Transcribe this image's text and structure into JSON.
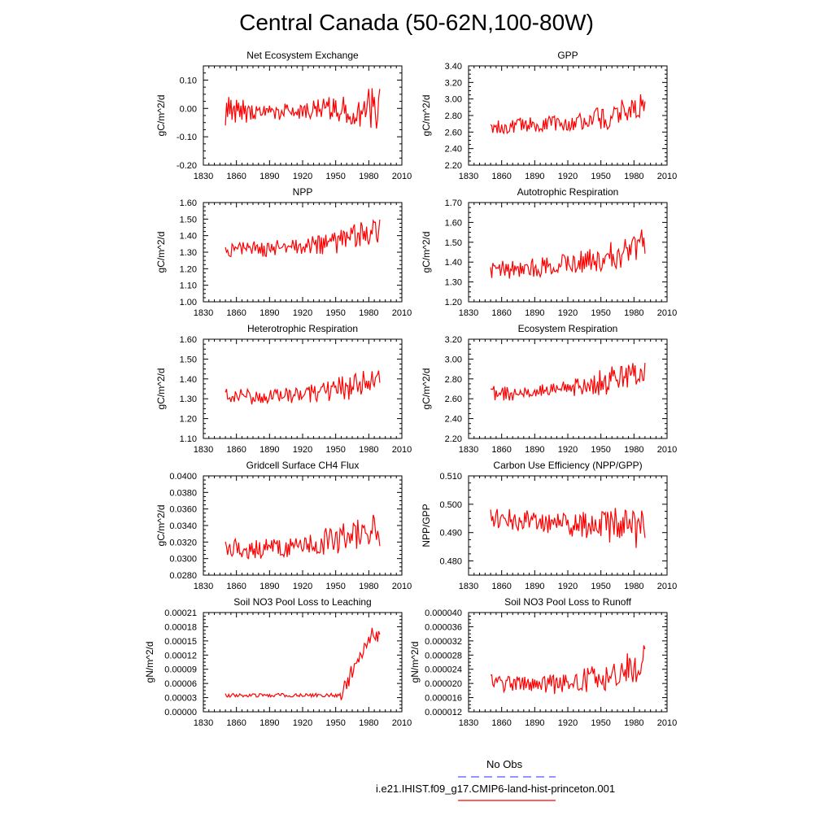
{
  "figure": {
    "title": "Central Canada (50-62N,100-80W)"
  },
  "colors": {
    "model_line": "#ff0000",
    "obs_line": "#5555ff",
    "axis": "#000000"
  },
  "chart_data": [
    {
      "type": "line",
      "title": "Net Ecosystem Exchange",
      "ylabel": "gC/m^2/d",
      "xlim": [
        1830,
        2010
      ],
      "xticks": [
        "1830",
        "1860",
        "1890",
        "1920",
        "1950",
        "1980",
        "2010"
      ],
      "ylim": [
        -0.2,
        0.15
      ],
      "yticks": [
        "-0.20",
        "-0.10",
        "0.00",
        "0.10"
      ],
      "series": [
        {
          "name": "i.e21.IHIST.f09_g17.CMIP6-land-hist-princeton.001",
          "start_year": 1850,
          "end_year": 1990,
          "base": [
            -0.01,
            -0.01,
            -0.01,
            0.0,
            0.0
          ],
          "amplitude": [
            0.03,
            0.03,
            0.03,
            0.05,
            0.08
          ],
          "values": [
            -0.06,
            0.02,
            -0.03,
            0.04,
            -0.02,
            0.03,
            -0.04,
            0.0,
            0.01,
            -0.05,
            0.03,
            -0.01,
            0.02,
            -0.03,
            0.01,
            -0.04,
            0.03,
            -0.02,
            0.01,
            -0.05
          ]
        }
      ]
    },
    {
      "type": "line",
      "title": "GPP",
      "ylabel": "gC/m^2/d",
      "xlim": [
        1830,
        2010
      ],
      "xticks": [
        "1830",
        "1860",
        "1890",
        "1920",
        "1950",
        "1980",
        "2010"
      ],
      "ylim": [
        2.2,
        3.4
      ],
      "yticks": [
        "2.20",
        "2.40",
        "2.60",
        "2.80",
        "3.00",
        "3.20",
        "3.40"
      ],
      "series": [
        {
          "name": "i.e21.IHIST.f09_g17.CMIP6-land-hist-princeton.001",
          "start_year": 1850,
          "end_year": 1990,
          "base": [
            2.66,
            2.69,
            2.72,
            2.78,
            2.95
          ],
          "amplitude": [
            0.09,
            0.09,
            0.1,
            0.15,
            0.16
          ]
        }
      ]
    },
    {
      "type": "line",
      "title": "NPP",
      "ylabel": "gC/m^2/d",
      "xlim": [
        1830,
        2010
      ],
      "xticks": [
        "1830",
        "1860",
        "1890",
        "1920",
        "1950",
        "1980",
        "2010"
      ],
      "ylim": [
        1.0,
        1.6
      ],
      "yticks": [
        "1.00",
        "1.10",
        "1.20",
        "1.30",
        "1.40",
        "1.50",
        "1.60"
      ],
      "series": [
        {
          "name": "i.e21.IHIST.f09_g17.CMIP6-land-hist-princeton.001",
          "start_year": 1850,
          "end_year": 1990,
          "base": [
            1.31,
            1.32,
            1.33,
            1.37,
            1.44
          ],
          "amplitude": [
            0.05,
            0.05,
            0.05,
            0.08,
            0.08
          ]
        }
      ]
    },
    {
      "type": "line",
      "title": "Autotrophic Respiration",
      "ylabel": "gC/m^2/d",
      "xlim": [
        1830,
        2010
      ],
      "xticks": [
        "1830",
        "1860",
        "1890",
        "1920",
        "1950",
        "1980",
        "2010"
      ],
      "ylim": [
        1.2,
        1.7
      ],
      "yticks": [
        "1.20",
        "1.30",
        "1.40",
        "1.50",
        "1.60",
        "1.70"
      ],
      "series": [
        {
          "name": "i.e21.IHIST.f09_g17.CMIP6-land-hist-princeton.001",
          "start_year": 1850,
          "end_year": 1990,
          "base": [
            1.35,
            1.37,
            1.39,
            1.42,
            1.5
          ],
          "amplitude": [
            0.05,
            0.05,
            0.05,
            0.08,
            0.08
          ]
        }
      ]
    },
    {
      "type": "line",
      "title": "Heterotrophic Respiration",
      "ylabel": "gC/m^2/d",
      "xlim": [
        1830,
        2010
      ],
      "xticks": [
        "1830",
        "1860",
        "1890",
        "1920",
        "1950",
        "1980",
        "2010"
      ],
      "ylim": [
        1.1,
        1.6
      ],
      "yticks": [
        "1.10",
        "1.20",
        "1.30",
        "1.40",
        "1.50",
        "1.60"
      ],
      "series": [
        {
          "name": "i.e21.IHIST.f09_g17.CMIP6-land-hist-princeton.001",
          "start_year": 1850,
          "end_year": 1990,
          "base": [
            1.31,
            1.31,
            1.32,
            1.35,
            1.39
          ],
          "amplitude": [
            0.04,
            0.04,
            0.04,
            0.07,
            0.07
          ]
        }
      ]
    },
    {
      "type": "line",
      "title": "Ecosystem Respiration",
      "ylabel": "gC/m^2/d",
      "xlim": [
        1830,
        2010
      ],
      "xticks": [
        "1830",
        "1860",
        "1890",
        "1920",
        "1950",
        "1980",
        "2010"
      ],
      "ylim": [
        2.2,
        3.2
      ],
      "yticks": [
        "2.20",
        "2.40",
        "2.60",
        "2.80",
        "3.00",
        "3.20"
      ],
      "series": [
        {
          "name": "i.e21.IHIST.f09_g17.CMIP6-land-hist-princeton.001",
          "start_year": 1850,
          "end_year": 1990,
          "base": [
            2.65,
            2.67,
            2.7,
            2.78,
            2.9
          ],
          "amplitude": [
            0.08,
            0.08,
            0.08,
            0.14,
            0.14
          ]
        }
      ]
    },
    {
      "type": "line",
      "title": "Gridcell Surface CH4 Flux",
      "ylabel": "gC/m^2/d",
      "xlim": [
        1830,
        2010
      ],
      "xticks": [
        "1830",
        "1860",
        "1890",
        "1920",
        "1950",
        "1980",
        "2010"
      ],
      "ylim": [
        0.028,
        0.04
      ],
      "yticks": [
        "0.0280",
        "0.0300",
        "0.0320",
        "0.0340",
        "0.0360",
        "0.0380",
        "0.0400"
      ],
      "series": [
        {
          "name": "i.e21.IHIST.f09_g17.CMIP6-land-hist-princeton.001",
          "start_year": 1850,
          "end_year": 1990,
          "base": [
            0.0312,
            0.0312,
            0.0315,
            0.0325,
            0.0335
          ],
          "amplitude": [
            0.0012,
            0.0012,
            0.0012,
            0.002,
            0.002
          ]
        }
      ]
    },
    {
      "type": "line",
      "title": "Carbon Use Efficiency (NPP/GPP)",
      "ylabel": "NPP/GPP",
      "xlim": [
        1830,
        2010
      ],
      "xticks": [
        "1830",
        "1860",
        "1890",
        "1920",
        "1950",
        "1980",
        "2010"
      ],
      "ylim": [
        0.475,
        0.51
      ],
      "yticks": [
        "0.480",
        "0.490",
        "0.500",
        "0.510"
      ],
      "series": [
        {
          "name": "i.e21.IHIST.f09_g17.CMIP6-land-hist-princeton.001",
          "start_year": 1850,
          "end_year": 1990,
          "base": [
            0.495,
            0.494,
            0.493,
            0.492,
            0.491
          ],
          "amplitude": [
            0.004,
            0.004,
            0.004,
            0.007,
            0.007
          ]
        }
      ]
    },
    {
      "type": "line",
      "title": "Soil NO3 Pool Loss to Leaching",
      "ylabel": "gN/m^2/d",
      "xlim": [
        1830,
        2010
      ],
      "xticks": [
        "1830",
        "1860",
        "1890",
        "1920",
        "1950",
        "1980",
        "2010"
      ],
      "ylim": [
        0.0,
        0.00021
      ],
      "yticks": [
        "0.00000",
        "0.00003",
        "0.00006",
        "0.00009",
        "0.00012",
        "0.00015",
        "0.00018",
        "0.00021"
      ],
      "series": [
        {
          "name": "i.e21.IHIST.f09_g17.CMIP6-land-hist-princeton.001",
          "start_year": 1850,
          "end_year": 1990,
          "base": [
            3.5e-05,
            3.5e-05,
            3.5e-05,
            4e-05,
            0.00016
          ],
          "amplitude": [
            4e-06,
            4e-06,
            4e-06,
            6e-06,
            2e-05
          ],
          "jump_year": 1955
        }
      ]
    },
    {
      "type": "line",
      "title": "Soil NO3 Pool Loss to Runoff",
      "ylabel": "gN/m^2/d",
      "xlim": [
        1830,
        2010
      ],
      "xticks": [
        "1830",
        "1860",
        "1890",
        "1920",
        "1950",
        "1980",
        "2010"
      ],
      "ylim": [
        1.2e-05,
        4e-05
      ],
      "yticks": [
        "0.000012",
        "0.000016",
        "0.000020",
        "0.000024",
        "0.000028",
        "0.000032",
        "0.000036",
        "0.000040"
      ],
      "series": [
        {
          "name": "i.e21.IHIST.f09_g17.CMIP6-land-hist-princeton.001",
          "start_year": 1850,
          "end_year": 1990,
          "base": [
            2e-05,
            1.95e-05,
            2e-05,
            2.2e-05,
            2.6e-05
          ],
          "amplitude": [
            2.5e-06,
            2.5e-06,
            3e-06,
            4e-06,
            5e-06
          ]
        }
      ]
    }
  ],
  "legend": {
    "obs_label": "No Obs",
    "model_label": "i.e21.IHIST.f09_g17.CMIP6-land-hist-princeton.001"
  }
}
